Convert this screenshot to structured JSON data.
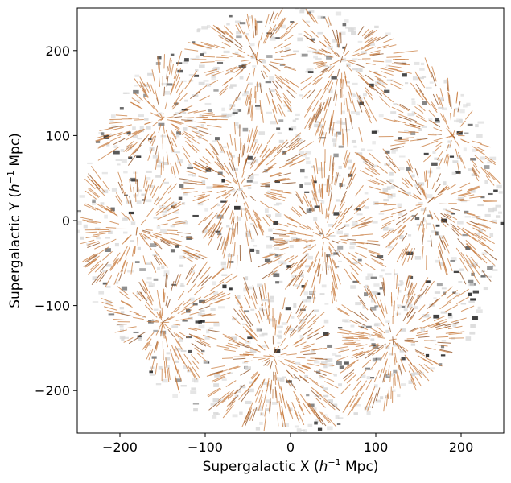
{
  "chart_data": {
    "type": "scatter",
    "description_kind": "vector-field",
    "xlabel": {
      "prefix": "Supergalactic X (",
      "h": "h",
      "sup": "−1",
      "suffix": " Mpc)"
    },
    "ylabel": {
      "prefix": "Supergalactic Y (",
      "h": "h",
      "sup": "−1",
      "suffix": " Mpc)"
    },
    "xlim": [
      -250,
      250
    ],
    "ylim": [
      -250,
      250
    ],
    "xticks": [
      -200,
      -100,
      0,
      100,
      200
    ],
    "yticks": [
      -200,
      -100,
      0,
      100,
      200
    ],
    "xtick_labels": [
      "−200",
      "−100",
      "0",
      "100",
      "200"
    ],
    "ytick_labels": [
      "−200",
      "−100",
      "0",
      "100",
      "200"
    ],
    "field_radius": 250,
    "grid": false,
    "colors": {
      "arrow": "#c87a3c",
      "arrow_dark": "#8a4a1c",
      "density_light": "#d8d8d8",
      "density_dark": "#141414",
      "axes": "#000000"
    },
    "attractors": [
      {
        "x": -150,
        "y": 120
      },
      {
        "x": -40,
        "y": 190
      },
      {
        "x": 60,
        "y": 190
      },
      {
        "x": 190,
        "y": 100
      },
      {
        "x": -180,
        "y": -10
      },
      {
        "x": 40,
        "y": -20
      },
      {
        "x": -150,
        "y": -120
      },
      {
        "x": 120,
        "y": -140
      },
      {
        "x": -20,
        "y": -160
      },
      {
        "x": 160,
        "y": 20
      },
      {
        "x": -60,
        "y": 40
      }
    ]
  }
}
